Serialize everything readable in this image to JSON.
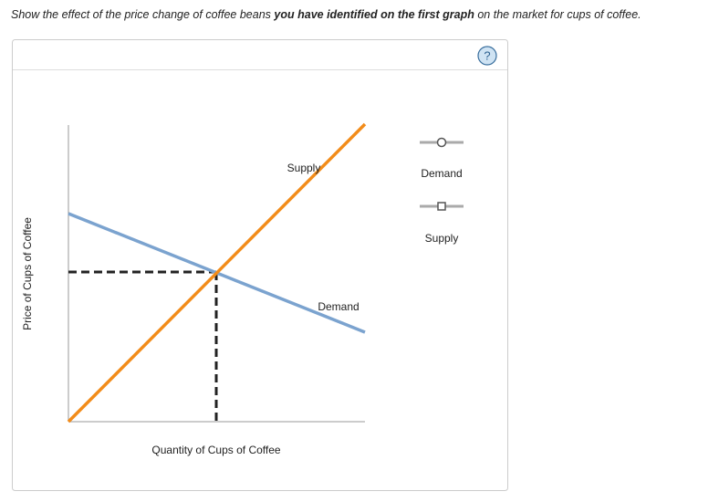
{
  "instruction": {
    "before": "Show the effect of the price change of coffee beans",
    "emphasis": "you have identified on the first graph",
    "after": "on the market for cups of coffee."
  },
  "help": "?",
  "graph": {
    "y_axis_label": "Price of Cups of Coffee",
    "x_axis_label": "Quantity of Cups of Coffee",
    "curves": {
      "supply": "Supply",
      "demand": "Demand"
    }
  },
  "tools": [
    "Demand",
    "Supply"
  ]
}
